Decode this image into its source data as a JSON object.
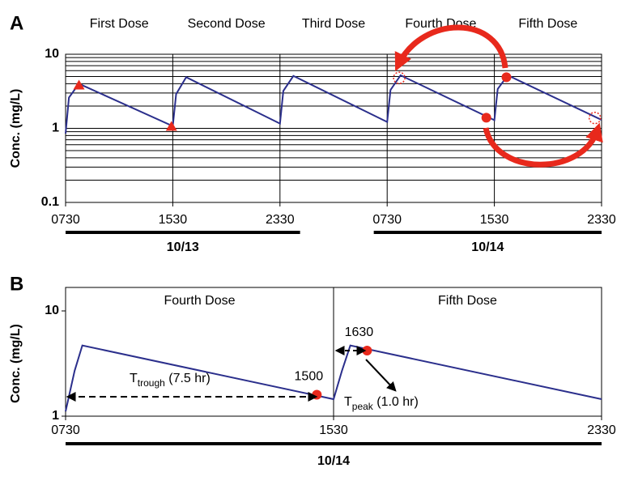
{
  "chart_data": [
    {
      "type": "line",
      "panel": "A",
      "y_label": "Conc. (mg/L)",
      "log_y": true,
      "minor_grid": true,
      "ylim": [
        0.1,
        10
      ],
      "yticks": [
        0.1,
        1,
        10
      ],
      "xlim": [
        0,
        40
      ],
      "xticks": [
        {
          "value": 0,
          "label": "0730"
        },
        {
          "value": 8,
          "label": "1530"
        },
        {
          "value": 16,
          "label": "2330"
        },
        {
          "value": 24,
          "label": "0730"
        },
        {
          "value": 32,
          "label": "1530"
        },
        {
          "value": 40,
          "label": "2330"
        }
      ],
      "dose_labels": [
        "First Dose",
        "Second Dose",
        "Third Dose",
        "Fourth Dose",
        "Fifth Dose"
      ],
      "dates": [
        {
          "label": "10/13",
          "span": [
            0,
            17.5
          ]
        },
        {
          "label": "10/14",
          "span": [
            23,
            40
          ]
        }
      ],
      "series": [
        {
          "color": "#2b2f8c",
          "x": [
            0,
            0.25,
            1,
            8,
            8.25,
            9,
            16,
            16.25,
            17,
            24,
            24.25,
            25,
            32,
            32.25,
            33,
            40
          ],
          "values": [
            0.85,
            2.6,
            4.0,
            1.07,
            2.9,
            4.9,
            1.16,
            3.2,
            5.1,
            1.22,
            3.3,
            5.2,
            1.29,
            3.4,
            5.2,
            1.3
          ]
        }
      ],
      "markers": [
        {
          "shape": "triangle",
          "x": 1,
          "y": 3.8,
          "color": "#e8291c"
        },
        {
          "shape": "triangle",
          "x": 7.9,
          "y": 1.05,
          "color": "#e8291c"
        },
        {
          "shape": "circle",
          "x": 31.4,
          "y": 1.39,
          "color": "#e8291c"
        },
        {
          "shape": "circle",
          "x": 32.9,
          "y": 4.9,
          "color": "#e8291c"
        },
        {
          "shape": "dashed-circle",
          "x": 24.9,
          "y": 4.8,
          "color": "#e8291c"
        },
        {
          "shape": "dashed-circle",
          "x": 39.5,
          "y": 1.38,
          "color": "#e8291c"
        }
      ]
    },
    {
      "type": "line",
      "panel": "B",
      "y_label": "Conc. (mg/L)",
      "log_y": true,
      "minor_grid": false,
      "ylim": [
        1,
        10
      ],
      "yticks": [
        1,
        10
      ],
      "xlim": [
        0,
        16
      ],
      "xticks": [
        {
          "value": 0,
          "label": "0730"
        },
        {
          "value": 8,
          "label": "1530"
        },
        {
          "value": 16,
          "label": "2330"
        }
      ],
      "dose_labels": [
        "Fourth Dose",
        "Fifth Dose"
      ],
      "dates": [
        {
          "label": "10/14",
          "span": [
            0,
            16
          ]
        }
      ],
      "series": [
        {
          "color": "#2b2f8c",
          "x": [
            0,
            0.27,
            0.5,
            8,
            8.25,
            8.5,
            16
          ],
          "values": [
            1.11,
            2.7,
            4.7,
            1.45,
            2.7,
            4.7,
            1.45
          ]
        }
      ],
      "markers": [
        {
          "shape": "circle",
          "x": 7.5,
          "y": 1.6,
          "color": "#e8291c",
          "label": "1500"
        },
        {
          "shape": "circle",
          "x": 9,
          "y": 4.2,
          "color": "#e8291c",
          "label": "1630"
        }
      ],
      "annotations": [
        {
          "text": "T",
          "sub": "trough",
          "rest": " (7.5 hr)"
        },
        {
          "text": "T",
          "sub": "peak",
          "rest": " (1.0 hr)"
        }
      ]
    }
  ]
}
